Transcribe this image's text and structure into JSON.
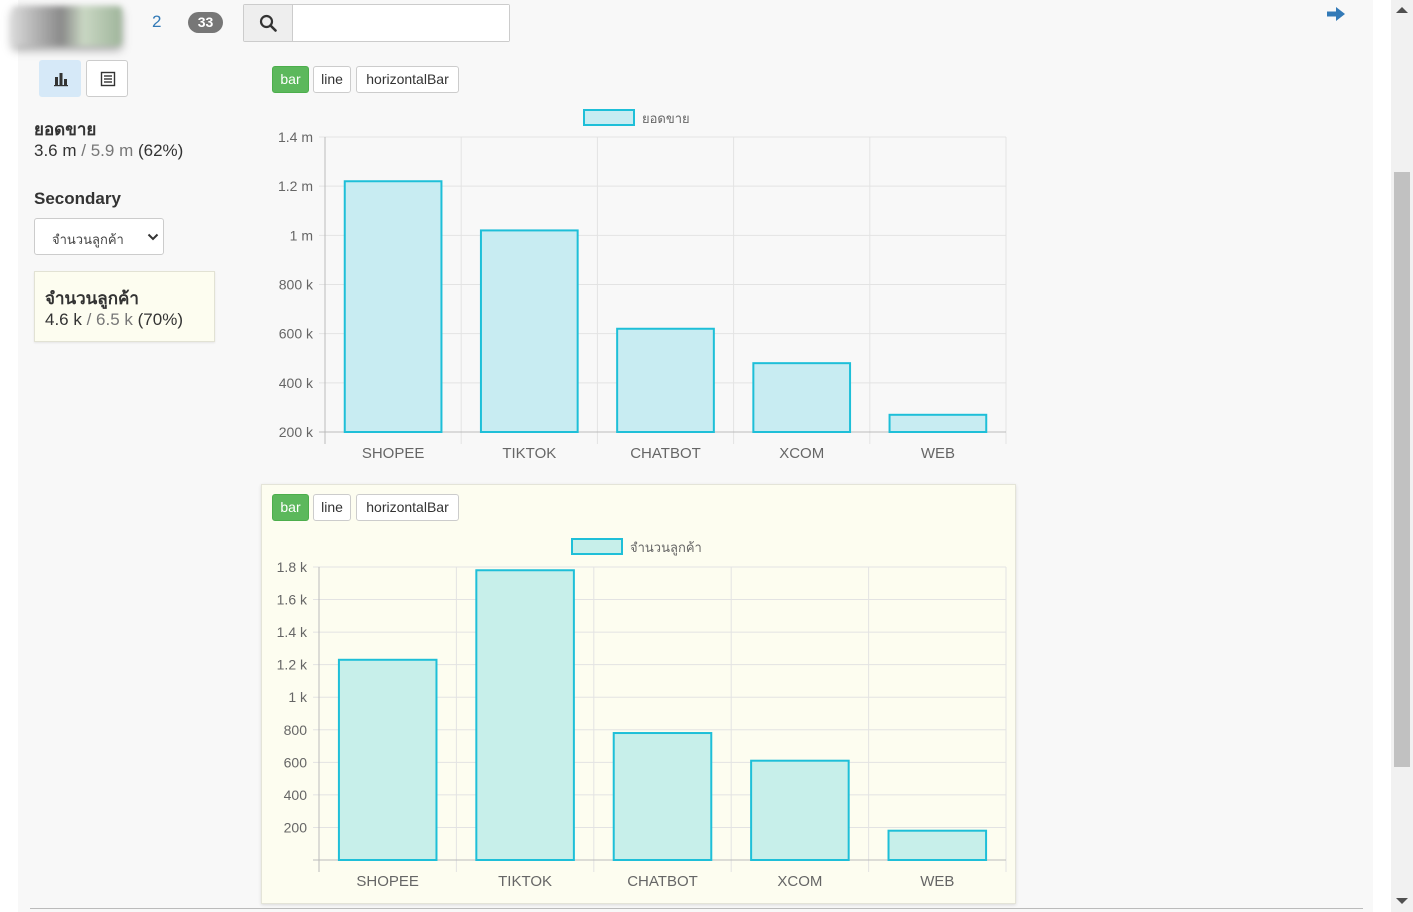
{
  "header": {
    "page_number": "2",
    "count_badge": "33",
    "search_placeholder": "",
    "search_value": ""
  },
  "sidebar": {
    "primary": {
      "title": "ยอดขาย",
      "value": "3.6 m",
      "separator_total": "/ 5.9 m",
      "percent": "(62%)"
    },
    "secondary_label": "Secondary",
    "secondary_select": "จำนวนลูกค้า",
    "secondary": {
      "title": "จำนวนลูกค้า",
      "value": "4.6 k",
      "separator_total": "/ 6.5 k",
      "percent": "(70%)"
    }
  },
  "chart_type_buttons": [
    "bar",
    "line",
    "horizontalBar"
  ],
  "colors": {
    "accent_green": "#5cb85c",
    "bar_border": "#1ebfd8",
    "bar_fill_1": "#c8ecf2",
    "bar_fill_2": "#c7efea",
    "link_blue": "#337ab7"
  },
  "chart_data": [
    {
      "type": "bar",
      "active_type": "bar",
      "categories": [
        "SHOPEE",
        "TIKTOK",
        "CHATBOT",
        "XCOM",
        "WEB"
      ],
      "series": [
        {
          "name": "ยอดขาย",
          "values": [
            1220000,
            1020000,
            620000,
            480000,
            270000
          ]
        }
      ],
      "ylim": [
        200000,
        1400000
      ],
      "yticks": [
        1400000,
        1200000,
        1000000,
        800000,
        600000,
        400000,
        200000
      ],
      "ytick_labels": [
        "1.4 m",
        "1.2 m",
        "1 m",
        "800 k",
        "600 k",
        "400 k",
        "200 k"
      ],
      "legend": "top",
      "grid": true
    },
    {
      "type": "bar",
      "active_type": "bar",
      "categories": [
        "SHOPEE",
        "TIKTOK",
        "CHATBOT",
        "XCOM",
        "WEB"
      ],
      "series": [
        {
          "name": "จำนวนลูกค้า",
          "values": [
            1230,
            1780,
            780,
            610,
            180
          ]
        }
      ],
      "ylim": [
        0,
        1800
      ],
      "yticks": [
        1800,
        1600,
        1400,
        1200,
        1000,
        800,
        600,
        400,
        200
      ],
      "ytick_labels": [
        "1.8 k",
        "1.6 k",
        "1.4 k",
        "1.2 k",
        "1 k",
        "800",
        "600",
        "400",
        "200"
      ],
      "legend": "top",
      "grid": true
    }
  ]
}
